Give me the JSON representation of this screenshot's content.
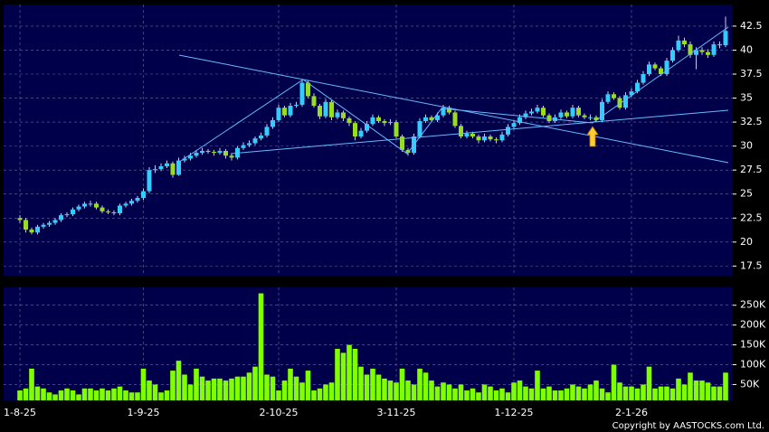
{
  "chart_data": [
    {
      "type": "candlestick",
      "up_color": "#33ccff",
      "down_color": "#99dd22",
      "open": [
        22.5,
        22.3,
        21.3,
        21.0,
        21.6,
        21.8,
        22.0,
        22.3,
        22.8,
        22.9,
        23.4,
        23.7,
        24.0,
        24.0,
        23.6,
        23.2,
        23.1,
        23.0,
        23.8,
        24.0,
        24.3,
        24.6,
        25.3,
        27.5,
        27.6,
        27.9,
        28.2,
        27.0,
        28.5,
        28.7,
        29.0,
        29.3,
        29.5,
        29.4,
        29.3,
        29.5,
        29.0,
        28.8,
        29.8,
        30.1,
        30.3,
        30.8,
        31.1,
        32.0,
        32.7,
        34.0,
        33.2,
        34.2,
        34.3,
        36.6,
        35.2,
        34.2,
        33.1,
        34.6,
        33.0,
        33.5,
        32.9,
        32.4,
        31.0,
        31.6,
        32.3,
        33.0,
        32.6,
        32.4,
        32.5,
        31.0,
        29.6,
        29.3,
        31.0,
        32.6,
        33.0,
        32.7,
        33.2,
        34.0,
        33.5,
        32.1,
        31.0,
        31.3,
        31.0,
        30.6,
        31.0,
        30.7,
        30.6,
        31.2,
        32.0,
        32.4,
        33.0,
        33.4,
        33.6,
        34.0,
        33.2,
        32.6,
        33.0,
        33.5,
        33.1,
        34.0,
        33.2,
        33.0,
        33.0,
        32.7,
        34.6,
        35.4,
        35.0,
        34.0,
        35.3,
        35.7,
        36.6,
        37.5,
        38.5,
        38.1,
        37.5,
        38.9,
        40.0,
        41.0,
        40.6,
        39.5,
        40.0,
        39.8,
        39.5,
        40.6,
        40.5
      ],
      "high": [
        22.8,
        22.5,
        21.5,
        21.8,
        22.0,
        22.2,
        22.5,
        23.0,
        23.1,
        23.6,
        23.9,
        24.2,
        24.3,
        24.2,
        23.8,
        23.4,
        23.3,
        24.0,
        24.2,
        24.5,
        24.8,
        25.6,
        27.8,
        28.0,
        28.2,
        28.5,
        28.4,
        28.8,
        29.0,
        29.3,
        29.6,
        29.8,
        29.7,
        29.6,
        29.8,
        29.7,
        29.2,
        30.0,
        30.4,
        30.6,
        31.0,
        31.4,
        32.3,
        33.0,
        34.3,
        34.2,
        34.5,
        34.6,
        36.9,
        36.8,
        35.5,
        34.4,
        34.9,
        34.8,
        33.8,
        33.7,
        33.1,
        32.6,
        31.9,
        32.6,
        33.3,
        33.2,
        32.8,
        32.8,
        32.7,
        31.2,
        29.8,
        31.3,
        32.9,
        33.3,
        33.2,
        33.5,
        34.3,
        34.2,
        33.7,
        32.3,
        31.6,
        31.5,
        31.2,
        31.3,
        31.2,
        30.9,
        31.5,
        32.3,
        32.7,
        33.3,
        33.7,
        33.9,
        34.3,
        34.2,
        33.4,
        33.3,
        33.8,
        33.7,
        34.3,
        34.2,
        33.4,
        33.3,
        33.2,
        34.9,
        35.7,
        35.6,
        35.2,
        35.6,
        36.0,
        36.9,
        37.8,
        38.8,
        38.7,
        38.3,
        39.2,
        40.3,
        41.5,
        41.3,
        40.9,
        40.3,
        40.3,
        40.1,
        40.9,
        40.9,
        43.5
      ],
      "low": [
        22.0,
        21.0,
        20.8,
        20.8,
        21.4,
        21.6,
        21.8,
        22.1,
        22.6,
        22.7,
        23.2,
        23.5,
        23.7,
        23.4,
        23.0,
        22.9,
        22.8,
        22.8,
        23.6,
        23.8,
        24.1,
        24.4,
        25.1,
        27.2,
        27.4,
        27.7,
        26.7,
        26.9,
        28.3,
        28.5,
        28.8,
        29.1,
        29.2,
        29.0,
        29.1,
        28.7,
        28.5,
        28.6,
        29.6,
        29.9,
        30.1,
        30.6,
        30.9,
        31.8,
        32.5,
        33.0,
        33.0,
        34.0,
        34.1,
        35.0,
        34.0,
        32.8,
        32.9,
        32.7,
        32.8,
        32.6,
        32.1,
        30.6,
        30.8,
        31.4,
        32.1,
        32.4,
        32.1,
        32.2,
        30.8,
        29.4,
        29.0,
        29.1,
        30.8,
        32.4,
        32.5,
        32.5,
        33.0,
        33.3,
        31.9,
        30.8,
        30.8,
        30.8,
        30.3,
        30.4,
        30.5,
        30.3,
        30.4,
        31.0,
        31.8,
        32.2,
        32.8,
        33.2,
        33.4,
        33.0,
        32.4,
        32.4,
        32.8,
        32.9,
        32.9,
        33.0,
        32.8,
        32.7,
        32.5,
        32.5,
        34.4,
        34.8,
        33.8,
        33.8,
        35.1,
        35.5,
        36.4,
        37.3,
        37.9,
        37.3,
        37.3,
        38.7,
        39.8,
        40.3,
        39.2,
        38.0,
        39.5,
        39.2,
        39.3,
        40.2,
        40.3
      ],
      "close": [
        22.3,
        21.3,
        21.0,
        21.6,
        21.8,
        22.0,
        22.3,
        22.8,
        22.9,
        23.4,
        23.7,
        24.0,
        24.0,
        23.6,
        23.2,
        23.1,
        23.0,
        23.8,
        24.0,
        24.3,
        24.6,
        25.3,
        27.5,
        27.6,
        27.9,
        28.2,
        27.0,
        28.5,
        28.7,
        29.0,
        29.3,
        29.5,
        29.4,
        29.3,
        29.5,
        29.0,
        28.8,
        29.8,
        30.1,
        30.3,
        30.8,
        31.1,
        32.0,
        32.7,
        34.0,
        33.2,
        34.2,
        34.3,
        36.6,
        35.2,
        34.2,
        33.1,
        34.6,
        33.0,
        33.5,
        32.9,
        32.4,
        31.0,
        31.6,
        32.3,
        33.0,
        32.6,
        32.4,
        32.5,
        31.0,
        29.6,
        29.3,
        31.0,
        32.6,
        33.0,
        32.7,
        33.2,
        34.0,
        33.5,
        32.1,
        31.0,
        31.3,
        31.0,
        30.6,
        31.0,
        30.7,
        30.6,
        31.2,
        32.0,
        32.4,
        33.0,
        33.4,
        33.6,
        34.0,
        33.2,
        32.6,
        33.0,
        33.5,
        33.1,
        34.0,
        33.2,
        33.0,
        33.0,
        32.7,
        34.6,
        35.4,
        35.0,
        34.0,
        35.3,
        35.7,
        36.6,
        37.5,
        38.5,
        38.1,
        37.5,
        38.9,
        40.0,
        41.0,
        40.6,
        39.5,
        40.0,
        39.8,
        39.5,
        40.6,
        40.5,
        42.0
      ],
      "ylim": [
        16.5,
        44.75
      ],
      "yticks": [
        17.5,
        20,
        22.5,
        25,
        27.5,
        30,
        32.5,
        35,
        37.5,
        40,
        42.5
      ],
      "grid": true
    },
    {
      "type": "bar",
      "color": "#80ff00",
      "categories": [
        "1-8-25",
        null,
        null,
        null,
        null,
        null,
        null,
        null,
        null,
        null,
        null,
        null,
        null,
        null,
        null,
        null,
        null,
        null,
        null,
        null,
        null,
        "1-9-25",
        null,
        null,
        null,
        null,
        null,
        null,
        null,
        null,
        null,
        null,
        null,
        null,
        null,
        null,
        null,
        null,
        null,
        null,
        null,
        null,
        null,
        null,
        "2-10-25",
        null,
        null,
        null,
        null,
        null,
        null,
        null,
        null,
        null,
        null,
        null,
        null,
        null,
        null,
        null,
        null,
        null,
        null,
        null,
        "3-11-25",
        null,
        null,
        null,
        null,
        null,
        null,
        null,
        null,
        null,
        null,
        null,
        null,
        null,
        null,
        null,
        null,
        null,
        null,
        null,
        "1-12-25",
        null,
        null,
        null,
        null,
        null,
        null,
        null,
        null,
        null,
        null,
        null,
        null,
        null,
        null,
        null,
        null,
        null,
        null,
        null,
        "2-1-26",
        null,
        null,
        null,
        null,
        null,
        null,
        null,
        null,
        null,
        null,
        null,
        null,
        null,
        null,
        null,
        null
      ],
      "values": [
        35000,
        40000,
        90000,
        45000,
        40000,
        30000,
        25000,
        35000,
        40000,
        35000,
        25000,
        40000,
        40000,
        35000,
        40000,
        35000,
        40000,
        45000,
        35000,
        30000,
        30000,
        90000,
        60000,
        50000,
        30000,
        35000,
        85000,
        110000,
        75000,
        50000,
        90000,
        70000,
        60000,
        65000,
        65000,
        60000,
        65000,
        70000,
        70000,
        80000,
        95000,
        280000,
        75000,
        70000,
        35000,
        60000,
        90000,
        70000,
        55000,
        85000,
        35000,
        40000,
        50000,
        55000,
        140000,
        130000,
        150000,
        140000,
        95000,
        75000,
        90000,
        75000,
        65000,
        60000,
        55000,
        90000,
        60000,
        50000,
        90000,
        80000,
        60000,
        45000,
        55000,
        50000,
        40000,
        50000,
        35000,
        40000,
        30000,
        50000,
        45000,
        35000,
        40000,
        30000,
        55000,
        60000,
        45000,
        40000,
        85000,
        40000,
        45000,
        35000,
        35000,
        40000,
        50000,
        45000,
        40000,
        50000,
        60000,
        40000,
        30000,
        100000,
        55000,
        45000,
        45000,
        40000,
        50000,
        95000,
        40000,
        45000,
        45000,
        40000,
        65000,
        50000,
        80000,
        60000,
        60000,
        55000,
        45000,
        45000,
        80000
      ],
      "ylim": [
        10000,
        295000
      ],
      "yticks": [
        {
          "value": 50000,
          "label": "50K"
        },
        {
          "value": 100000,
          "label": "100K"
        },
        {
          "value": 150000,
          "label": "150K"
        },
        {
          "value": 200000,
          "label": "200K"
        },
        {
          "value": 250000,
          "label": "250K"
        }
      ],
      "grid": true
    }
  ],
  "copyright": "Copyright by AASTOCKS.com Ltd."
}
